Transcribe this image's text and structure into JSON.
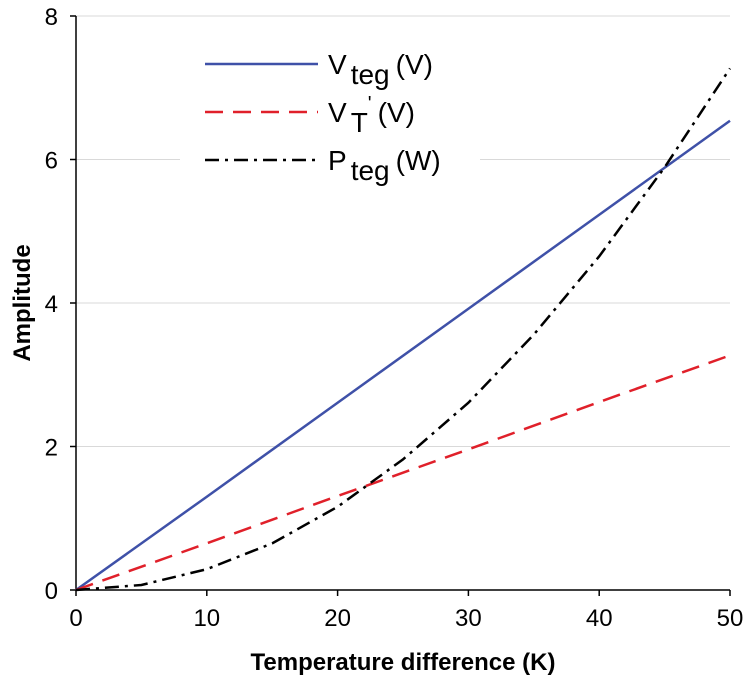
{
  "chart_data": {
    "type": "line",
    "xlabel": "Temperature difference (K)",
    "ylabel": "Amplitude",
    "xlim": [
      0,
      50
    ],
    "ylim": [
      0,
      8
    ],
    "xticks": [
      "0",
      "10",
      "20",
      "30",
      "40",
      "50"
    ],
    "yticks": [
      "0",
      "2",
      "4",
      "6",
      "8"
    ],
    "grid": "horizontal",
    "legend_position": "top-left",
    "series": [
      {
        "name": "V",
        "subscript": "teg",
        "unit": "(V)",
        "color": "#3f51a8",
        "style": "solid",
        "x": [
          0,
          10,
          20,
          30,
          40,
          50
        ],
        "values": [
          0,
          1.3,
          2.61,
          3.92,
          5.23,
          6.54
        ]
      },
      {
        "name": "V",
        "subscript": "T",
        "superscript": "'",
        "unit": "(V)",
        "color": "#e0202a",
        "style": "dashed",
        "x": [
          0,
          10,
          20,
          30,
          40,
          50
        ],
        "values": [
          0,
          0.65,
          1.31,
          1.96,
          2.62,
          3.27
        ]
      },
      {
        "name": "P",
        "subscript": "teg",
        "unit": "(W)",
        "color": "#000000",
        "style": "dashdot",
        "x": [
          0,
          5,
          10,
          15,
          20,
          25,
          30,
          35,
          40,
          45,
          50
        ],
        "values": [
          0,
          0.07,
          0.29,
          0.65,
          1.16,
          1.82,
          2.61,
          3.56,
          4.65,
          5.89,
          7.27
        ]
      }
    ]
  }
}
